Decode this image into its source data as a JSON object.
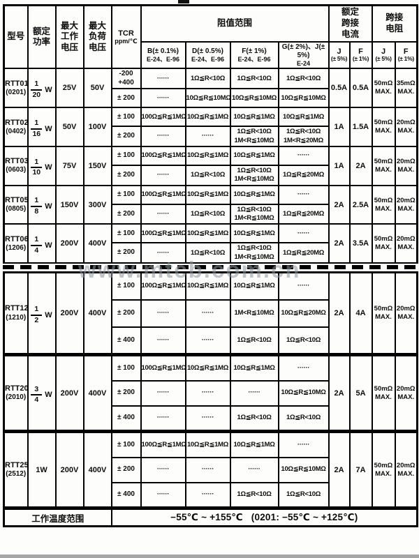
{
  "watermark": "www.mtcb.com.cn",
  "table": {
    "header": {
      "model": "型号",
      "power": "额定\n功率",
      "max_working_voltage": "最大\n工作\n电压",
      "max_load_voltage": "最大\n负荷\n电压",
      "tcr_line1": "TCR",
      "tcr_line2": "ppm/℃",
      "resistance_range": "阻值范围",
      "rated_jumper_current": "额定\n跨接\n电流",
      "jumper_resistance": "跨接\n电阻",
      "tolerance_cols": [
        {
          "line1": "B(± 0.1%)",
          "line2": "E-24、E-96"
        },
        {
          "line1": "D(± 0.5%)",
          "line2": "E-24、E-96"
        },
        {
          "line1": "F(± 1%)",
          "line2": "E-24、E-96"
        },
        {
          "line1": "G(± 2%)、J(± 5%)",
          "line2": "E-24"
        }
      ],
      "current_cols": [
        {
          "line1": "J",
          "line2": "(± 5%)"
        },
        {
          "line1": "F",
          "line2": "(± 1%)"
        }
      ],
      "resistance_cols": [
        {
          "line1": "J",
          "line2": "(± 5%)"
        },
        {
          "line1": "F",
          "line2": "(± 1%)"
        }
      ]
    },
    "groups": [
      {
        "section": "A",
        "model": "RTT01",
        "package": "(0201)",
        "power": {
          "num": "1",
          "den": "20",
          "unit": "W"
        },
        "vwork": "25V",
        "vload": "50V",
        "tcr_rows": [
          {
            "tcr": "-200\n+400",
            "b": "······",
            "d": "1Ω≦R<10Ω",
            "f": "1Ω≦R<10Ω",
            "gj": "1Ω≦R<10Ω"
          },
          {
            "tcr": "± 200",
            "b": "······",
            "d": "10Ω≦R≦10MΩ",
            "f": "10Ω≦R≦10MΩ",
            "gj": "10Ω≦R≦10MΩ"
          }
        ],
        "jc": "0.5A",
        "fc": "0.5A",
        "jr": "50mΩ\nMAX.",
        "fr": "35mΩ\nMAX."
      },
      {
        "section": "A",
        "model": "RTT02",
        "package": "(0402)",
        "power": {
          "num": "1",
          "den": "16",
          "unit": "W"
        },
        "vwork": "50V",
        "vload": "100V",
        "tcr_rows": [
          {
            "tcr": "± 100",
            "b": "100Ω≦R≦1MΩ",
            "d": "10Ω≦R≦1MΩ",
            "f": "10Ω≦R≦1MΩ",
            "gj": "10Ω≦R≦1MΩ"
          },
          {
            "tcr": "± 200",
            "b": "······",
            "d": "······",
            "f": "1Ω≦R<10Ω\n1M<R≦10MΩ",
            "gj": "1Ω≦R<10Ω\n1M<R≦20MΩ"
          }
        ],
        "jc": "1A",
        "fc": "1.5A",
        "jr": "50mΩ\nMAX.",
        "fr": "20mΩ\nMAX."
      },
      {
        "section": "A",
        "model": "RTT03",
        "package": "(0603)",
        "power": {
          "num": "1",
          "den": "10",
          "unit": "W"
        },
        "vwork": "75V",
        "vload": "150V",
        "tcr_rows": [
          {
            "tcr": "± 100",
            "b": "100Ω≦R≦1MΩ",
            "d": "10Ω≦R≦1MΩ",
            "f": "10Ω≦R≦1MΩ",
            "gj": "······"
          },
          {
            "tcr": "± 200",
            "b": "······",
            "d": "1Ω≦R<10Ω",
            "f": "1Ω≦R<10Ω\n1M<R≦10MΩ",
            "gj": "1Ω≦R≦20MΩ"
          }
        ],
        "jc": "1A",
        "fc": "2A",
        "jr": "50mΩ\nMAX.",
        "fr": "20mΩ\nMAX."
      },
      {
        "section": "A",
        "model": "RTT05",
        "package": "(0805)",
        "power": {
          "num": "1",
          "den": "8",
          "unit": "W"
        },
        "vwork": "150V",
        "vload": "300V",
        "tcr_rows": [
          {
            "tcr": "± 100",
            "b": "100Ω≦R≦1MΩ",
            "d": "10Ω≦R≦1MΩ",
            "f": "10Ω≦R≦1MΩ",
            "gj": "······"
          },
          {
            "tcr": "± 200",
            "b": "······",
            "d": "1Ω≦R<10Ω",
            "f": "1Ω≦R<10Ω\n1M<R≦10MΩ",
            "gj": "1Ω≦R≦20MΩ"
          }
        ],
        "jc": "2A",
        "fc": "2.5A",
        "jr": "50mΩ\nMAX.",
        "fr": "20mΩ\nMAX."
      },
      {
        "section": "A",
        "model": "RTT06",
        "package": "(1206)",
        "power": {
          "num": "1",
          "den": "4",
          "unit": "W"
        },
        "vwork": "200V",
        "vload": "400V",
        "tcr_rows": [
          {
            "tcr": "± 100",
            "b": "100Ω≦R≦1MΩ",
            "d": "10Ω≦R≦1MΩ",
            "f": "10Ω≦R≦1MΩ",
            "gj": "······"
          },
          {
            "tcr": "± 200",
            "b": "······",
            "d": "1Ω≦R<10Ω",
            "f": "1Ω≦R<10Ω\n1M<R≦10MΩ",
            "gj": "1Ω≦R≦20MΩ"
          }
        ],
        "jc": "2A",
        "fc": "3.5A",
        "jr": "50mΩ\nMAX.",
        "fr": "20mΩ\nMAX."
      },
      {
        "section": "B",
        "model": "RTT12",
        "package": "(1210)",
        "power": {
          "num": "1",
          "den": "2",
          "unit": "W"
        },
        "vwork": "200V",
        "vload": "400V",
        "tcr_rows": [
          {
            "tcr": "± 100",
            "b": "100Ω≦R≦1MΩ",
            "d": "10Ω≦R≦1MΩ",
            "f": "10Ω≦R≦1MΩ",
            "gj": "······"
          },
          {
            "tcr": "± 200",
            "b": "······",
            "d": "······",
            "f": "1M<R≦10MΩ",
            "gj": "10Ω≦R≦20MΩ"
          },
          {
            "tcr": "± 400",
            "b": "······",
            "d": "······",
            "f": "1Ω≦R<10Ω",
            "gj": "1Ω≦R<10Ω"
          }
        ],
        "jc": "2A",
        "fc": "4A",
        "jr": "50mΩ\nMAX.",
        "fr": "20mΩ\nMAX."
      },
      {
        "section": "C",
        "model": "RTT20",
        "package": "(2010)",
        "power": {
          "num": "3",
          "den": "4",
          "unit": "W"
        },
        "vwork": "200V",
        "vload": "400V",
        "tcr_rows": [
          {
            "tcr": "± 100",
            "b": "100Ω≦R≦1MΩ",
            "d": "10Ω≦R≦1MΩ",
            "f": "10Ω≦R≦1MΩ",
            "gj": "······"
          },
          {
            "tcr": "± 200",
            "b": "······",
            "d": "······",
            "f": "······",
            "gj": "10Ω≦R≦10MΩ"
          },
          {
            "tcr": "± 400",
            "b": "······",
            "d": "······",
            "f": "1Ω≦R<10Ω",
            "gj": "1Ω≦R<10Ω"
          }
        ],
        "jc": "2A",
        "fc": "5A",
        "jr": "50mΩ\nMAX.",
        "fr": "20mΩ\nMAX."
      },
      {
        "section": "D",
        "model": "RTT25",
        "package": "(2512)",
        "power": {
          "plain": "1W"
        },
        "vwork": "200V",
        "vload": "400V",
        "tcr_rows": [
          {
            "tcr": "± 100",
            "b": "100Ω≦R≦1MΩ",
            "d": "10Ω≦R≦1MΩ",
            "f": "10Ω≦R≦1MΩ",
            "gj": "······"
          },
          {
            "tcr": "± 200",
            "b": "······",
            "d": "······",
            "f": "······",
            "gj": "10Ω≦R≦10MΩ"
          },
          {
            "tcr": "± 400",
            "b": "······",
            "d": "······",
            "f": "1Ω≦R<10Ω",
            "gj": "1Ω≦R<10Ω"
          }
        ],
        "jc": "2A",
        "fc": "7A",
        "jr": "50mΩ\nMAX.",
        "fr": "20mΩ\nMAX."
      }
    ],
    "footer": {
      "label": "工作温度范围",
      "value": "−55℃ ~ +155℃   (0201: −55℃ ~ +125℃)"
    }
  }
}
